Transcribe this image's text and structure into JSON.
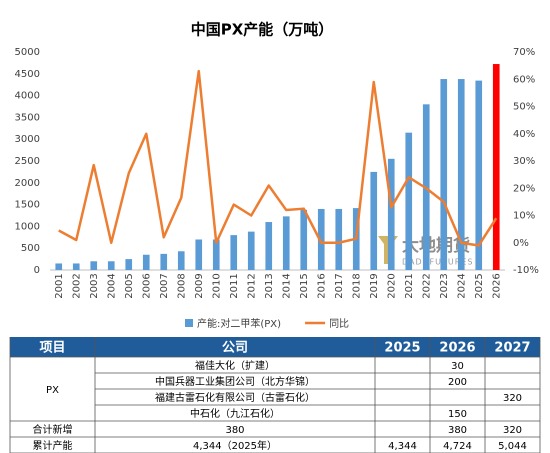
{
  "chart_data": {
    "type": "bar_line",
    "title": "中国PX产能（万吨）",
    "categories": [
      "2001",
      "2002",
      "2003",
      "2004",
      "2005",
      "2006",
      "2007",
      "2008",
      "2009",
      "2010",
      "2011",
      "2012",
      "2013",
      "2014",
      "2015",
      "2016",
      "2017",
      "2018",
      "2019",
      "2020",
      "2021",
      "2022",
      "2023",
      "2024",
      "2025",
      "2026"
    ],
    "series": [
      {
        "name": "产能:对二甲苯(PX)",
        "type": "bar",
        "color": "#5b9bd5",
        "colors": [
          "#5b9bd5",
          "#5b9bd5",
          "#5b9bd5",
          "#5b9bd5",
          "#5b9bd5",
          "#5b9bd5",
          "#5b9bd5",
          "#5b9bd5",
          "#5b9bd5",
          "#5b9bd5",
          "#5b9bd5",
          "#5b9bd5",
          "#5b9bd5",
          "#5b9bd5",
          "#5b9bd5",
          "#5b9bd5",
          "#5b9bd5",
          "#5b9bd5",
          "#5b9bd5",
          "#5b9bd5",
          "#5b9bd5",
          "#5b9bd5",
          "#5b9bd5",
          "#5b9bd5",
          "#5b9bd5",
          "#ff0000"
        ],
        "values": [
          150,
          150,
          200,
          200,
          250,
          350,
          370,
          430,
          700,
          700,
          800,
          880,
          1100,
          1230,
          1380,
          1400,
          1400,
          1420,
          2250,
          2550,
          3150,
          3800,
          4380,
          4380,
          4344,
          4724
        ]
      },
      {
        "name": "同比",
        "type": "line",
        "color": "#ed7d31",
        "axis": "y2",
        "values": [
          4.5,
          1,
          28.5,
          0,
          25.5,
          40,
          2,
          16.5,
          63,
          0,
          14,
          10,
          21,
          12,
          12.5,
          0,
          0,
          1.5,
          59,
          13,
          24,
          20,
          15,
          0,
          -1,
          9
        ]
      }
    ],
    "ylim": [
      0,
      5000
    ],
    "yticks": [
      0,
      500,
      1000,
      1500,
      2000,
      2500,
      3000,
      3500,
      4000,
      4500,
      5000
    ],
    "y2lim": [
      -10,
      70
    ],
    "y2ticks": [
      {
        "value": -10,
        "label": "-10%"
      },
      {
        "value": 0,
        "label": "0%"
      },
      {
        "value": 10,
        "label": "10%"
      },
      {
        "value": 20,
        "label": "20%"
      },
      {
        "value": 30,
        "label": "30%"
      },
      {
        "value": 40,
        "label": "40%"
      },
      {
        "value": 50,
        "label": "50%"
      },
      {
        "value": 60,
        "label": "60%"
      },
      {
        "value": 70,
        "label": "70%"
      }
    ],
    "grid": false
  },
  "watermark": {
    "text": "大地期货",
    "subtext": "DADI FUTURES"
  },
  "table": {
    "header": [
      "项目",
      "公司",
      "2025",
      "2026",
      "2027"
    ],
    "group": "PX",
    "rows": [
      [
        "福佳大化（扩建）",
        null,
        "30",
        null
      ],
      [
        "中国兵器工业集团公司（北方华锦）",
        null,
        "200",
        null
      ],
      [
        "福建古雷石化有限公司（古雷石化）",
        null,
        null,
        "320"
      ],
      [
        "中石化（九江石化）",
        null,
        "150",
        null
      ]
    ],
    "totals": [
      [
        "合计新增",
        "380",
        null,
        "380",
        "320"
      ],
      [
        "累计产能",
        "4,344（2025年）",
        "4,344",
        "4,724",
        "5,044"
      ]
    ]
  }
}
